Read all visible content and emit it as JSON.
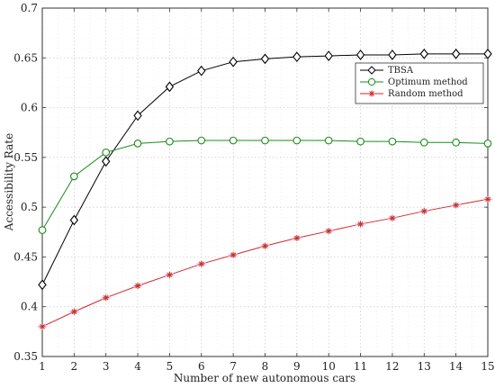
{
  "chart_data": {
    "type": "line",
    "xlabel": "Number of new autonomous cars",
    "ylabel": "Accessibility Rate",
    "xlim": [
      1,
      15
    ],
    "ylim": [
      0.35,
      0.7
    ],
    "x": [
      1,
      2,
      3,
      4,
      5,
      6,
      7,
      8,
      9,
      10,
      11,
      12,
      13,
      14,
      15
    ],
    "xticks": [
      "1",
      "2",
      "3",
      "4",
      "5",
      "6",
      "7",
      "8",
      "9",
      "10",
      "11",
      "12",
      "13",
      "14",
      "15"
    ],
    "yticks": [
      "0.35",
      "0.4",
      "0.45",
      "0.5",
      "0.55",
      "0.6",
      "0.65",
      "0.7"
    ],
    "grid": "dotted",
    "legend_position": "top-right",
    "series": [
      {
        "name": "TBSA",
        "color": "#000000",
        "marker": "diamond",
        "values": [
          0.422,
          0.487,
          0.546,
          0.592,
          0.621,
          0.637,
          0.646,
          0.649,
          0.651,
          0.652,
          0.653,
          0.653,
          0.654,
          0.654,
          0.654
        ]
      },
      {
        "name": "Optimum method",
        "color": "#1a8c1a",
        "marker": "circle",
        "values": [
          0.477,
          0.531,
          0.555,
          0.564,
          0.566,
          0.567,
          0.567,
          0.567,
          0.567,
          0.567,
          0.566,
          0.566,
          0.565,
          0.565,
          0.564
        ]
      },
      {
        "name": "Random method",
        "color": "#d62728",
        "marker": "star",
        "values": [
          0.38,
          0.395,
          0.409,
          0.421,
          0.432,
          0.443,
          0.452,
          0.461,
          0.469,
          0.476,
          0.483,
          0.489,
          0.496,
          0.502,
          0.508
        ]
      }
    ]
  }
}
